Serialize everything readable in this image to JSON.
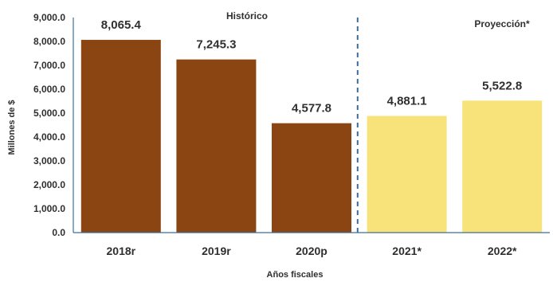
{
  "chart_data": {
    "type": "bar",
    "categories": [
      "2018r",
      "2019r",
      "2020p",
      "2021*",
      "2022*"
    ],
    "values": [
      8065.4,
      7245.3,
      4577.8,
      4881.1,
      5522.8
    ],
    "value_labels": [
      "8,065.4",
      "7,245.3",
      "4,577.8",
      "4,881.1",
      "5,522.8"
    ],
    "xlabel": "Años fiscales",
    "ylabel": "Millones de $",
    "ylim": [
      0,
      9000
    ],
    "yticks": [
      "0.0",
      "1,000.0",
      "2,000.0",
      "3,000.0",
      "4,000.0",
      "5,000.0",
      "6,000.0",
      "7,000.0",
      "8,000.0",
      "9,000.0"
    ],
    "grid": false,
    "sections": [
      {
        "label": "Histórico",
        "categories": [
          "2018r",
          "2019r",
          "2020p"
        ]
      },
      {
        "label": "Proyección*",
        "categories": [
          "2021*",
          "2022*"
        ]
      }
    ],
    "colors": {
      "historico": "#8B4513",
      "proyeccion": "#F8E27A",
      "axis": "#3A6E9D",
      "divider": "#3A6E9D"
    }
  }
}
